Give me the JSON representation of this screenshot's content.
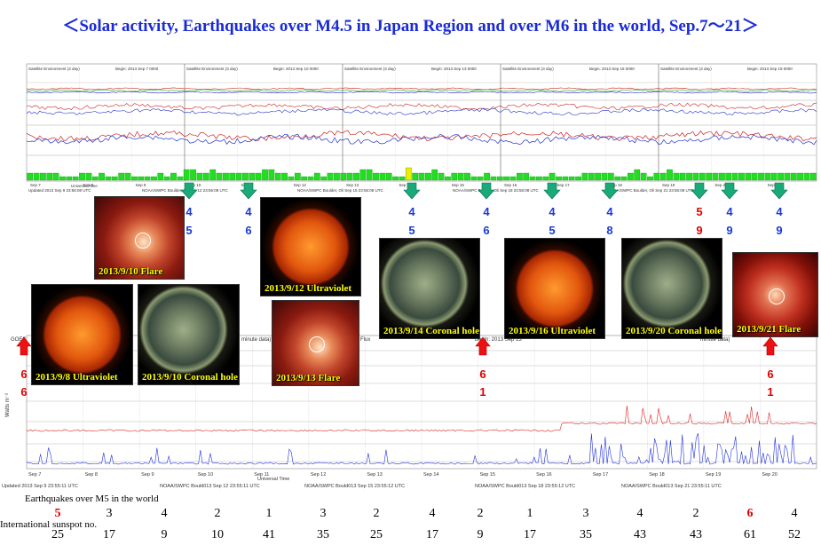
{
  "title": "＜Solar activity, Earthquakes over M4.5 in Japan Region and over M6 in the world, Sep.7〜21＞",
  "goes_top": {
    "header_texts": [
      "Satellite Environment (3 day)",
      "Begin: 2013 Sep 7 0000",
      "Satellite Environment (3 day)",
      "Begin: 2013 Sep 10 0000",
      "Satellite Environment (3 day)",
      "Begin: 2013 Sep 13 0000",
      "Satellite Environment (3 day)",
      "Begin: 2013 Sep 16 0000",
      "Satellite Environment (3 day)",
      "Begin: 2013 Sep 19 0000"
    ],
    "date_ticks": [
      "Sep 7",
      "Sep 8",
      "Sep 9",
      "Sep 10",
      "Sep 11",
      "Sep 12",
      "Sep 13",
      "Sep 14",
      "Sep 15",
      "Sep 16",
      "Sep 17",
      "Sep 18",
      "Sep 19",
      "Sep 20",
      "Sep 21",
      "Sep 22"
    ],
    "footer_left": "Updated 2013 Sep 9 23:56:08 UTC",
    "footer_mid": [
      "NOAA/SWPC Boulder, Oli Sep 12 23:56:08 UTC",
      "NOAA/SWPC Boulder, Oli Sep 15 23:56:08 UTC",
      "NOAA/SWPC Boulder, Oli Sep 18 23:56:08 UTC",
      "NOAA/SWPC Boulder, Oli Sep 21 23:56:08 UTC"
    ],
    "universal_time": "Universal Time",
    "kp_values": [
      2,
      2,
      2,
      2,
      2,
      1,
      1,
      1,
      2,
      2,
      1,
      2,
      1,
      1,
      2,
      2,
      1,
      1,
      1,
      1,
      2,
      1,
      2,
      1,
      3,
      3,
      2,
      2,
      3,
      2,
      2,
      2,
      2,
      2,
      2,
      2,
      3,
      3,
      2,
      2,
      1,
      2,
      1,
      1,
      2,
      1,
      2,
      2,
      2,
      2,
      2,
      3,
      3,
      2,
      2,
      2,
      1,
      1,
      2,
      2,
      2,
      2,
      3,
      2,
      1,
      2,
      2,
      2,
      1,
      1,
      2,
      1,
      1,
      1,
      1,
      2,
      2,
      1,
      1,
      1,
      2,
      1,
      1,
      1,
      1,
      2,
      2,
      2,
      2,
      2,
      1,
      1,
      2,
      3,
      2,
      1,
      2,
      2,
      3,
      2,
      2,
      2,
      2,
      2,
      2,
      2,
      2,
      2,
      2,
      2,
      2,
      2,
      2,
      2,
      2,
      2,
      2,
      2,
      2,
      2,
      2
    ],
    "kp_highlight_index": 58
  },
  "japan_quakes": [
    {
      "mag": "4",
      "count": "5",
      "color": "blue"
    },
    {
      "mag": "4",
      "count": "6",
      "color": "blue"
    },
    {
      "mag": "4",
      "count": "5",
      "color": "blue"
    },
    {
      "mag": "4",
      "count": "6",
      "color": "blue"
    },
    {
      "mag": "4",
      "count": "5",
      "color": "blue"
    },
    {
      "mag": "4",
      "count": "8",
      "color": "blue"
    },
    {
      "mag": "5",
      "count": "9",
      "color": "red"
    },
    {
      "mag": "4",
      "count": "9",
      "color": "blue"
    },
    {
      "mag": "4",
      "count": "9",
      "color": "blue"
    }
  ],
  "world_arrows": [
    {
      "mag": "6",
      "count": "6"
    },
    {
      "mag": "6",
      "count": "1"
    },
    {
      "mag": "6",
      "count": "1"
    }
  ],
  "thumbnails": [
    {
      "caption": "2013/9/10 Flare"
    },
    {
      "caption": "2013/9/12 Ultraviolet"
    },
    {
      "caption": "2013/9/14 Coronal hole"
    },
    {
      "caption": "2013/9/16 Ultraviolet"
    },
    {
      "caption": "2013/9/20 Coronal hole"
    },
    {
      "caption": "2013/9/21 Flare"
    },
    {
      "caption": "2013/9/8 Ultraviolet"
    },
    {
      "caption": "2013/9/10 Coronal hole"
    },
    {
      "caption": "2013/9/13 Flare"
    }
  ],
  "goes_bottom": {
    "left_label": "GOES",
    "partial_texts": [
      "minute data)",
      "Flux",
      "Begin: 2013 Sep 13",
      "minute data)"
    ],
    "ylabel": "Watts m⁻²",
    "date_ticks": [
      "Sep 7",
      "Sep 8",
      "Sep 9",
      "Sep 10",
      "Sep 11",
      "Sep 12",
      "Sep 13",
      "Sep 14",
      "Sep 15",
      "Sep 16",
      "Sep 17",
      "Sep 18",
      "Sep 19",
      "Sep 20",
      "Sep 21"
    ],
    "universal_time": "Universal Time",
    "footer_texts": [
      "Updated 2013 Sep 9 23:55:11 UTC",
      "NOAA/SWPC Bould013 Sep 12 23:55:11 UTC",
      "NOAA/SWPC Bould013 Sep 15 23:55:12 UTC",
      "NOAA/SWPC Bould013 Sep 18 23:55:12 UTC",
      "NOAA/SWPC Bould013 Sep 21 23:55:11 UTC"
    ]
  },
  "bottom_table": {
    "eq_label": "Earthquakes over M5 in the world",
    "eq_counts": [
      "5",
      "3",
      "4",
      "2",
      "1",
      "3",
      "2",
      "4",
      "2",
      "1",
      "3",
      "4",
      "2",
      "6",
      "4"
    ],
    "eq_highlight": [
      0,
      13
    ],
    "sunspot_label": "International sunspot no.",
    "sunspot_counts": [
      "25",
      "17",
      "9",
      "10",
      "41",
      "35",
      "25",
      "17",
      "9",
      "17",
      "35",
      "43",
      "43",
      "61",
      "52"
    ]
  },
  "colors": {
    "title": "#1a2bd6",
    "kp_bar": "#22dd22",
    "kp_highlight": "#eeee00",
    "japan_arrow": "#1aaa7a",
    "world_arrow": "#ee1111",
    "blue_text": "#1a3ad6",
    "red_text": "#e00000",
    "xray_long": "#dd2222",
    "xray_short": "#2233dd"
  }
}
